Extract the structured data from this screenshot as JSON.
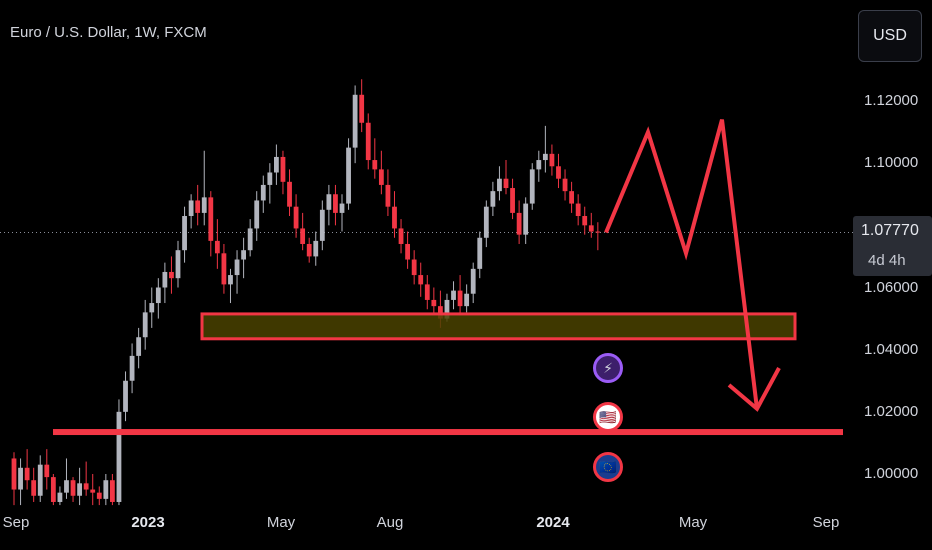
{
  "header": {
    "symbol_title": "Euro / U.S. Dollar, 1W, FXCM",
    "currency": "USD"
  },
  "price_tag": {
    "price": "1.07770",
    "countdown": "4d 4h"
  },
  "y_ticks": [
    "1.12000",
    "1.10000",
    "1.06000",
    "1.04000",
    "1.02000",
    "1.00000"
  ],
  "x_ticks": [
    {
      "label": "Sep",
      "bold": false
    },
    {
      "label": "2023",
      "bold": true
    },
    {
      "label": "May",
      "bold": false
    },
    {
      "label": "Aug",
      "bold": false
    },
    {
      "label": "2024",
      "bold": true
    },
    {
      "label": "May",
      "bold": false
    },
    {
      "label": "Sep",
      "bold": false
    }
  ],
  "badges": [
    {
      "icon": "lightning-icon",
      "glyph": "⚡"
    },
    {
      "icon": "us-flag-icon",
      "glyph": "🇺🇸"
    },
    {
      "icon": "eu-flag-icon",
      "glyph": "🇪🇺"
    }
  ],
  "colors": {
    "up": "#b2b5be",
    "down": "#f23645",
    "drawing": "#f23645",
    "zone_fill": "#4a4200",
    "background": "#000000"
  },
  "chart_data": {
    "type": "candlestick",
    "title": "Euro / U.S. Dollar, 1W, FXCM",
    "interval": "1W",
    "last_price": 1.0777,
    "ylim": [
      0.99,
      1.132
    ],
    "y_ticks": [
      1.12,
      1.1,
      1.06,
      1.04,
      1.02,
      1.0
    ],
    "x_tick_labels": [
      "Sep",
      "2023",
      "May",
      "Aug",
      "2024",
      "May",
      "Sep"
    ],
    "candles_ohlc": [
      [
        1.005,
        1.007,
        0.99,
        0.995
      ],
      [
        0.995,
        1.005,
        0.99,
        1.002
      ],
      [
        1.002,
        1.008,
        0.995,
        0.998
      ],
      [
        0.998,
        1.002,
        0.991,
        0.993
      ],
      [
        0.993,
        1.006,
        0.991,
        1.003
      ],
      [
        1.003,
        1.008,
        0.995,
        0.999
      ],
      [
        0.999,
        1.0,
        0.99,
        0.991
      ],
      [
        0.991,
        0.996,
        0.99,
        0.994
      ],
      [
        0.994,
        1.005,
        0.992,
        0.998
      ],
      [
        0.998,
        0.999,
        0.991,
        0.993
      ],
      [
        0.993,
        1.002,
        0.99,
        0.997
      ],
      [
        0.997,
        1.004,
        0.993,
        0.995
      ],
      [
        0.995,
        1.0,
        0.99,
        0.994
      ],
      [
        0.994,
        0.996,
        0.99,
        0.992
      ],
      [
        0.992,
        1.0,
        0.99,
        0.998
      ],
      [
        0.998,
        1.0,
        0.99,
        0.991
      ],
      [
        0.991,
        1.024,
        0.99,
        1.02
      ],
      [
        1.02,
        1.033,
        1.017,
        1.03
      ],
      [
        1.03,
        1.042,
        1.026,
        1.038
      ],
      [
        1.038,
        1.047,
        1.034,
        1.044
      ],
      [
        1.044,
        1.056,
        1.04,
        1.052
      ],
      [
        1.052,
        1.06,
        1.047,
        1.055
      ],
      [
        1.055,
        1.063,
        1.05,
        1.06
      ],
      [
        1.06,
        1.068,
        1.055,
        1.065
      ],
      [
        1.065,
        1.07,
        1.058,
        1.063
      ],
      [
        1.063,
        1.075,
        1.06,
        1.072
      ],
      [
        1.072,
        1.086,
        1.068,
        1.083
      ],
      [
        1.083,
        1.09,
        1.079,
        1.088
      ],
      [
        1.088,
        1.093,
        1.08,
        1.084
      ],
      [
        1.084,
        1.104,
        1.08,
        1.089
      ],
      [
        1.089,
        1.091,
        1.07,
        1.075
      ],
      [
        1.075,
        1.082,
        1.066,
        1.071
      ],
      [
        1.071,
        1.074,
        1.058,
        1.061
      ],
      [
        1.061,
        1.066,
        1.055,
        1.064
      ],
      [
        1.064,
        1.072,
        1.058,
        1.069
      ],
      [
        1.069,
        1.076,
        1.063,
        1.072
      ],
      [
        1.072,
        1.082,
        1.07,
        1.079
      ],
      [
        1.079,
        1.091,
        1.075,
        1.088
      ],
      [
        1.088,
        1.096,
        1.084,
        1.093
      ],
      [
        1.093,
        1.1,
        1.087,
        1.097
      ],
      [
        1.097,
        1.106,
        1.093,
        1.102
      ],
      [
        1.102,
        1.104,
        1.09,
        1.094
      ],
      [
        1.094,
        1.098,
        1.083,
        1.086
      ],
      [
        1.086,
        1.09,
        1.076,
        1.079
      ],
      [
        1.079,
        1.084,
        1.072,
        1.074
      ],
      [
        1.074,
        1.076,
        1.068,
        1.07
      ],
      [
        1.07,
        1.078,
        1.067,
        1.075
      ],
      [
        1.075,
        1.088,
        1.072,
        1.085
      ],
      [
        1.085,
        1.093,
        1.08,
        1.09
      ],
      [
        1.09,
        1.093,
        1.08,
        1.084
      ],
      [
        1.084,
        1.09,
        1.078,
        1.087
      ],
      [
        1.087,
        1.108,
        1.085,
        1.105
      ],
      [
        1.105,
        1.125,
        1.1,
        1.122
      ],
      [
        1.122,
        1.127,
        1.11,
        1.113
      ],
      [
        1.113,
        1.116,
        1.098,
        1.101
      ],
      [
        1.101,
        1.108,
        1.095,
        1.098
      ],
      [
        1.098,
        1.104,
        1.09,
        1.093
      ],
      [
        1.093,
        1.098,
        1.083,
        1.086
      ],
      [
        1.086,
        1.091,
        1.076,
        1.079
      ],
      [
        1.079,
        1.082,
        1.071,
        1.074
      ],
      [
        1.074,
        1.078,
        1.066,
        1.069
      ],
      [
        1.069,
        1.072,
        1.061,
        1.064
      ],
      [
        1.064,
        1.068,
        1.057,
        1.061
      ],
      [
        1.061,
        1.064,
        1.053,
        1.056
      ],
      [
        1.056,
        1.06,
        1.051,
        1.054
      ],
      [
        1.054,
        1.059,
        1.047,
        1.05
      ],
      [
        1.05,
        1.058,
        1.049,
        1.056
      ],
      [
        1.056,
        1.062,
        1.053,
        1.059
      ],
      [
        1.059,
        1.064,
        1.051,
        1.054
      ],
      [
        1.054,
        1.061,
        1.052,
        1.058
      ],
      [
        1.058,
        1.068,
        1.055,
        1.066
      ],
      [
        1.066,
        1.078,
        1.063,
        1.076
      ],
      [
        1.076,
        1.088,
        1.073,
        1.086
      ],
      [
        1.086,
        1.094,
        1.083,
        1.091
      ],
      [
        1.091,
        1.099,
        1.088,
        1.095
      ],
      [
        1.095,
        1.101,
        1.09,
        1.092
      ],
      [
        1.092,
        1.095,
        1.082,
        1.084
      ],
      [
        1.084,
        1.088,
        1.074,
        1.077
      ],
      [
        1.077,
        1.089,
        1.074,
        1.087
      ],
      [
        1.087,
        1.1,
        1.085,
        1.098
      ],
      [
        1.098,
        1.104,
        1.094,
        1.101
      ],
      [
        1.101,
        1.112,
        1.097,
        1.103
      ],
      [
        1.103,
        1.106,
        1.096,
        1.099
      ],
      [
        1.099,
        1.103,
        1.092,
        1.095
      ],
      [
        1.095,
        1.098,
        1.088,
        1.091
      ],
      [
        1.091,
        1.094,
        1.084,
        1.087
      ],
      [
        1.087,
        1.09,
        1.08,
        1.083
      ],
      [
        1.083,
        1.086,
        1.077,
        1.08
      ],
      [
        1.08,
        1.084,
        1.076,
        1.078
      ],
      [
        1.078,
        1.081,
        1.072,
        1.0777
      ]
    ],
    "annotations": {
      "support_zone": [
        1.0435,
        1.0515
      ],
      "support_line": 1.0135,
      "projection_path": [
        1.0777,
        1.11,
        1.071,
        1.114,
        1.021
      ]
    }
  }
}
